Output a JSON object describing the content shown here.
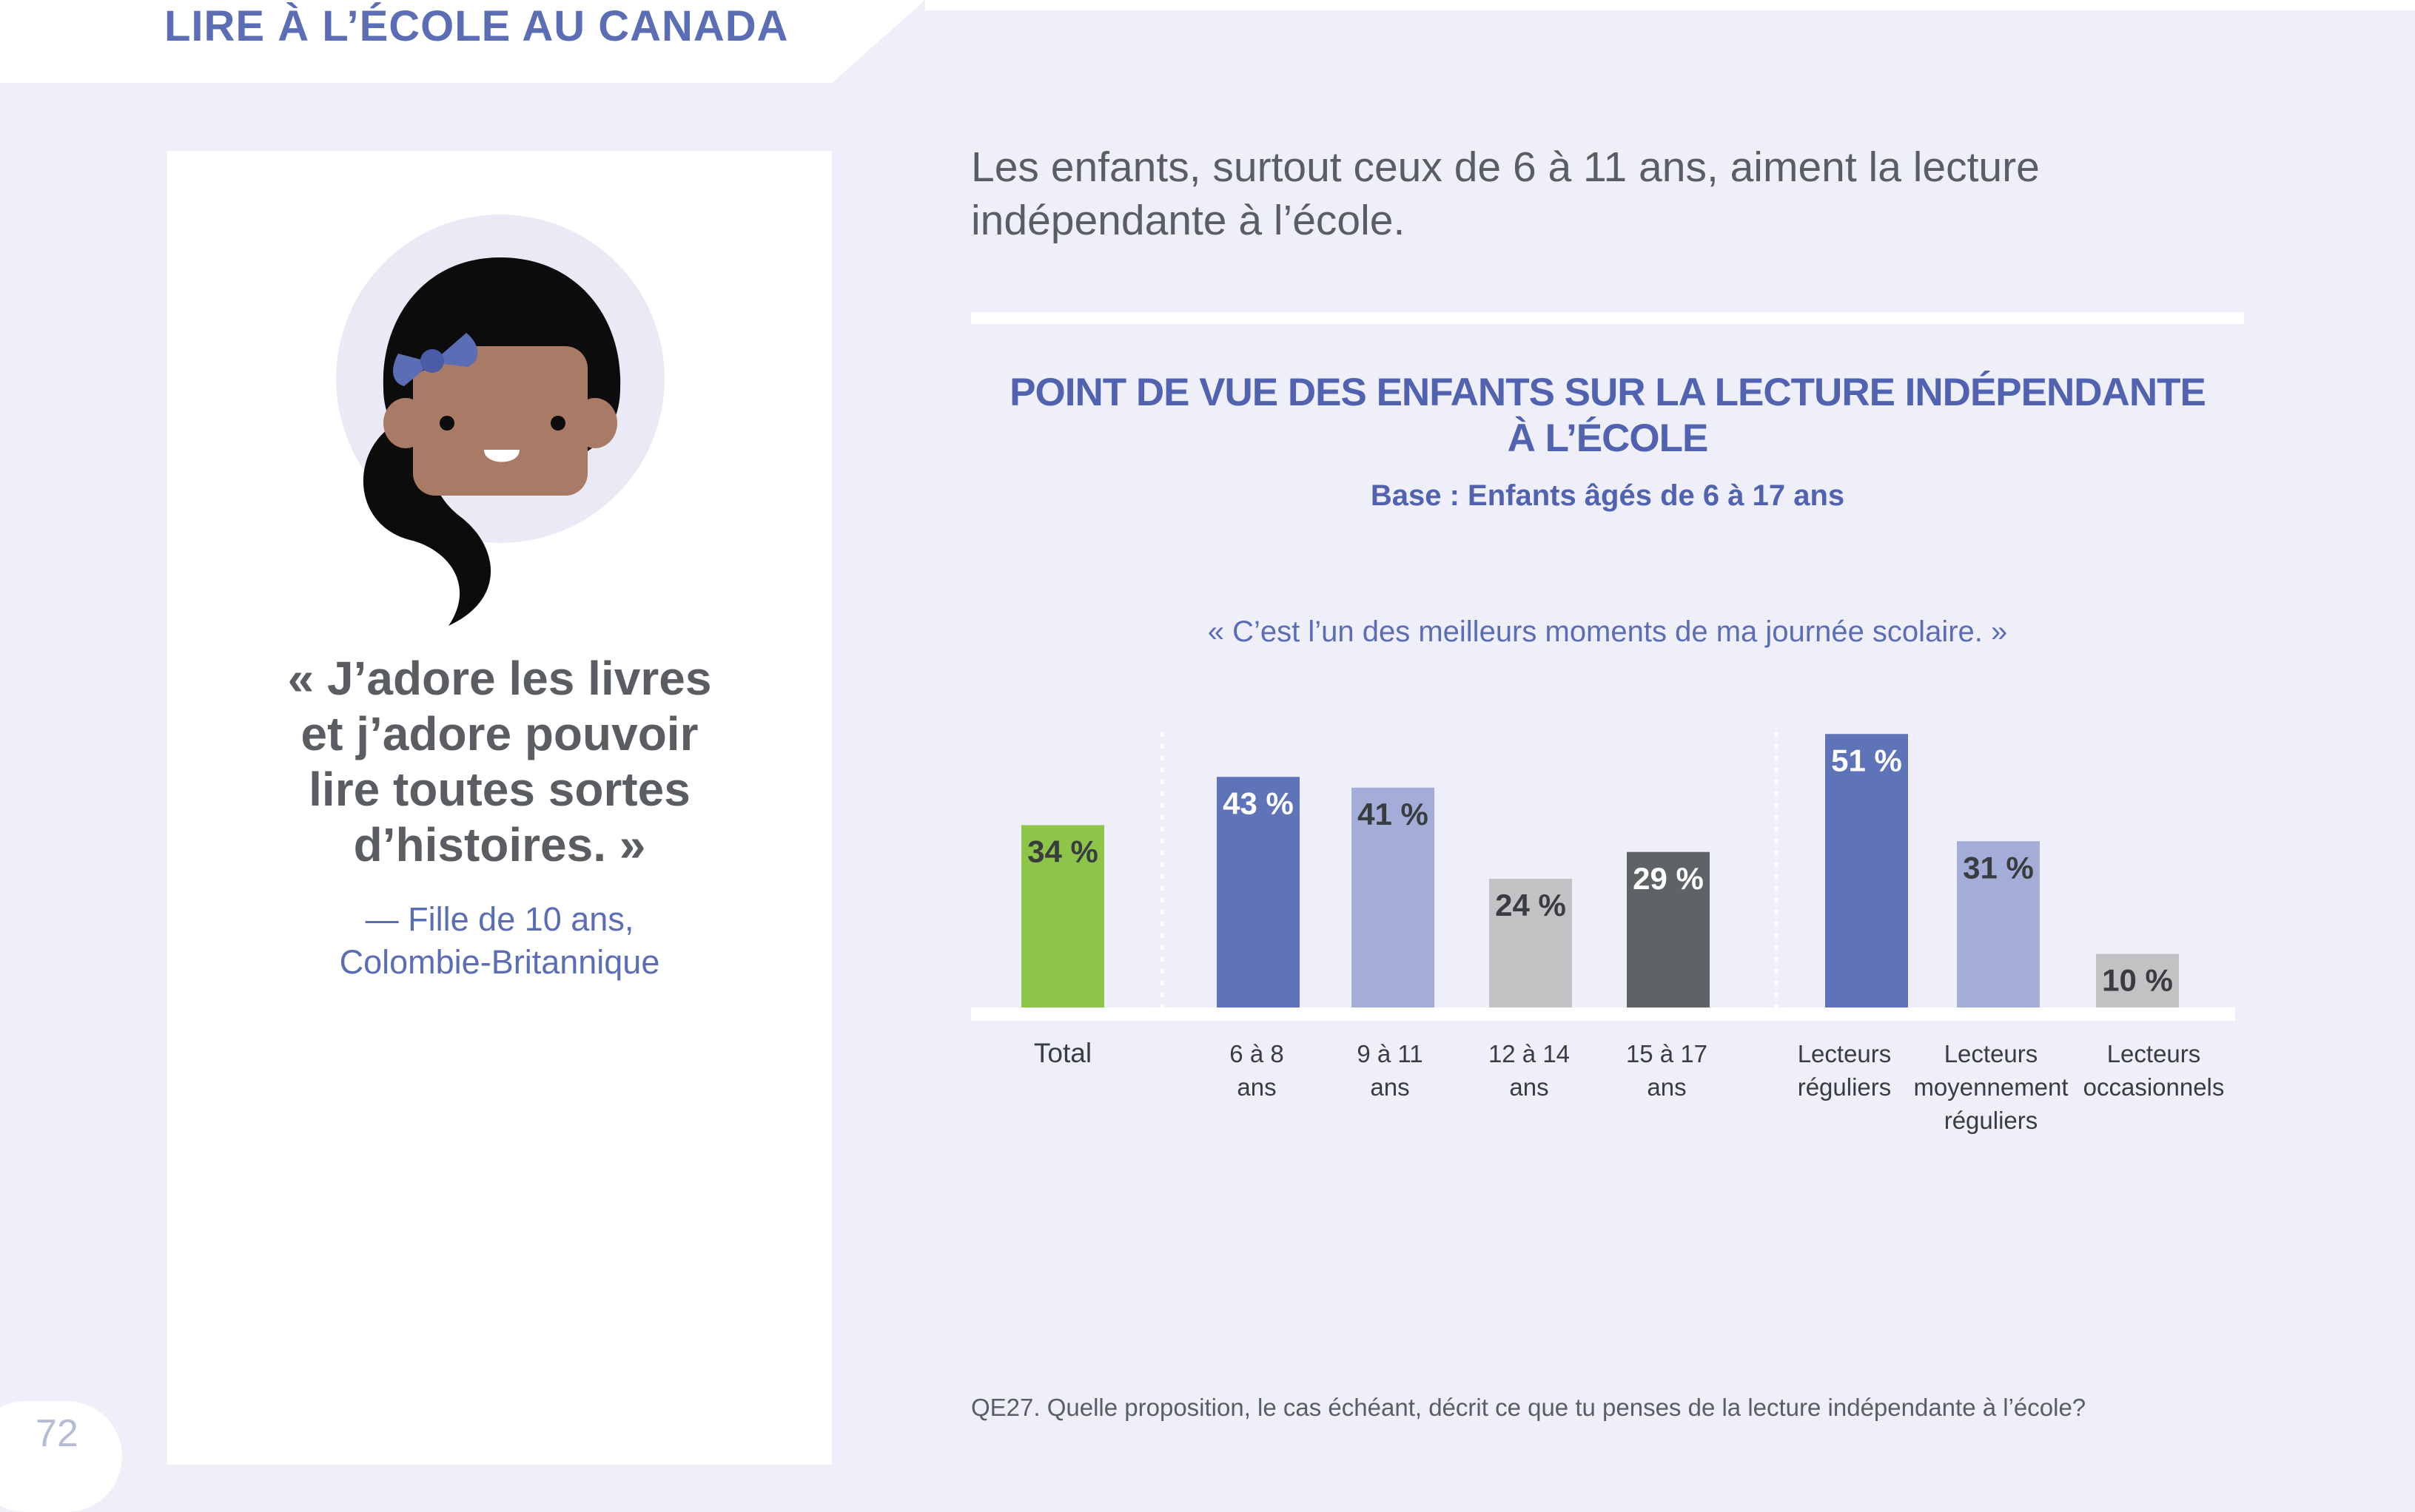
{
  "header": {
    "title": "LIRE À L’ÉCOLE AU CANADA"
  },
  "page_number": "72",
  "quote": {
    "text": "« J’adore les livres\net j’adore pouvoir\nlire toutes sortes\nd’histoires. »",
    "attribution": "— Fille de 10 ans,\nColombie-Britannique"
  },
  "avatar": {
    "icon": "girl-avatar-icon"
  },
  "headline": "Les enfants, surtout ceux de 6 à 11 ans, aiment la lecture\nindépendante à l’école.",
  "chart_data": {
    "type": "bar",
    "title": "POINT DE VUE DES ENFANTS SUR LA LECTURE INDÉPENDANTE\nÀ L’ÉCOLE",
    "subtitle": "Base : Enfants âgés de 6 à 17 ans",
    "statement": "« C’est l’un des meilleurs moments de ma journée scolaire. »",
    "unit": "%",
    "ylim": [
      0,
      100
    ],
    "grid": false,
    "legend": "none",
    "groups": [
      [
        "Total"
      ],
      [
        "6 à 8 ans",
        "9 à 11 ans",
        "12 à 14 ans",
        "15 à 17 ans"
      ],
      [
        "Lecteurs réguliers",
        "Lecteurs moyennement réguliers",
        "Lecteurs occasionnels"
      ]
    ],
    "categories": [
      "Total",
      "6 à 8\nans",
      "9 à 11\nans",
      "12 à 14\nans",
      "15 à 17\nans",
      "Lecteurs\nréguliers",
      "Lecteurs\nmoyennement\nréguliers",
      "Lecteurs\noccasionnels"
    ],
    "values": [
      34,
      43,
      41,
      24,
      29,
      51,
      31,
      10
    ],
    "value_labels": [
      "34 %",
      "43 %",
      "41 %",
      "24 %",
      "29 %",
      "51 %",
      "31 %",
      "10 %"
    ],
    "colors": [
      "#8dc549",
      "#5f74b8",
      "#a4acd8",
      "#c2c1c3",
      "#5e6366",
      "#5f74b8",
      "#a4acd8",
      "#c2c1c3"
    ],
    "label_colors": [
      "#3a3d40",
      "#ffffff",
      "#3a3d40",
      "#3a3d40",
      "#ffffff",
      "#ffffff",
      "#3a3d40",
      "#3a3d40"
    ]
  },
  "footnote": "QE27. Quelle proposition, le cas échéant, décrit ce que tu penses de la lecture indépendante à l’école?",
  "colors": {
    "background": "#eeeff8",
    "accent": "#5b6db5",
    "text": "#5a5e62"
  }
}
